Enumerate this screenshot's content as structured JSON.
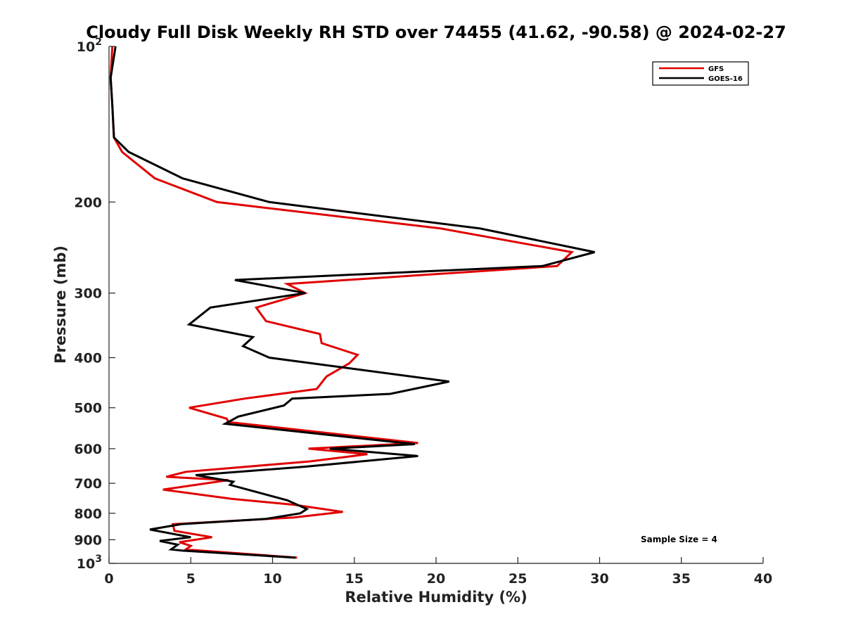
{
  "chart_data": {
    "type": "line",
    "title": "Cloudy Full Disk Weekly RH STD over 74455 (41.62, -90.58) @ 2024-02-27",
    "xlabel": "Relative Humidity (%)",
    "ylabel": "Pressure (mb)",
    "xlim": [
      0,
      40
    ],
    "ylim": [
      100,
      1000
    ],
    "y_scale": "log",
    "y_reversed": true,
    "grid": false,
    "legend_placement": "top-right",
    "x_ticks": [
      0,
      5,
      10,
      15,
      20,
      25,
      30,
      35,
      40
    ],
    "y_ticks": [
      {
        "value": 100,
        "base": "10",
        "exp": "2"
      },
      {
        "value": 200,
        "label": "200"
      },
      {
        "value": 300,
        "label": "300"
      },
      {
        "value": 400,
        "label": "400"
      },
      {
        "value": 500,
        "label": "500"
      },
      {
        "value": 600,
        "label": "600"
      },
      {
        "value": 700,
        "label": "700"
      },
      {
        "value": 800,
        "label": "800"
      },
      {
        "value": 900,
        "label": "900"
      },
      {
        "value": 1000,
        "base": "10",
        "exp": "3"
      }
    ],
    "annotation": "Sample Size = 4",
    "series": [
      {
        "name": "GFS",
        "color": "#e00000",
        "points": [
          [
            0.2,
            100
          ],
          [
            0.1,
            115
          ],
          [
            0.2,
            130
          ],
          [
            0.3,
            150
          ],
          [
            0.8,
            160
          ],
          [
            2.8,
            180
          ],
          [
            6.6,
            200
          ],
          [
            20.3,
            225
          ],
          [
            28.3,
            250
          ],
          [
            27.4,
            266
          ],
          [
            10.9,
            288
          ],
          [
            12.0,
            300
          ],
          [
            9.0,
            320
          ],
          [
            9.6,
            340
          ],
          [
            12.9,
            360
          ],
          [
            13.0,
            375
          ],
          [
            15.2,
            395
          ],
          [
            14.7,
            410
          ],
          [
            13.3,
            435
          ],
          [
            12.7,
            460
          ],
          [
            8.3,
            480
          ],
          [
            4.9,
            500
          ],
          [
            7.2,
            525
          ],
          [
            7.3,
            533
          ],
          [
            18.9,
            585
          ],
          [
            12.2,
            600
          ],
          [
            15.8,
            615
          ],
          [
            12.3,
            635
          ],
          [
            4.7,
            665
          ],
          [
            3.5,
            680
          ],
          [
            7.3,
            690
          ],
          [
            3.3,
            720
          ],
          [
            7.5,
            750
          ],
          [
            11.3,
            770
          ],
          [
            14.3,
            795
          ],
          [
            11.3,
            815
          ],
          [
            3.9,
            840
          ],
          [
            4.0,
            865
          ],
          [
            6.3,
            890
          ],
          [
            4.3,
            910
          ],
          [
            5.0,
            925
          ],
          [
            4.7,
            940
          ],
          [
            11.5,
            975
          ]
        ]
      },
      {
        "name": "GOES-16",
        "color": "#000000",
        "points": [
          [
            0.4,
            100
          ],
          [
            0.1,
            115
          ],
          [
            0.2,
            130
          ],
          [
            0.3,
            150
          ],
          [
            1.2,
            160
          ],
          [
            4.5,
            180
          ],
          [
            9.8,
            200
          ],
          [
            22.7,
            225
          ],
          [
            29.7,
            250
          ],
          [
            26.5,
            266
          ],
          [
            7.7,
            283
          ],
          [
            12.0,
            300
          ],
          [
            6.2,
            320
          ],
          [
            4.9,
            345
          ],
          [
            8.8,
            365
          ],
          [
            8.2,
            380
          ],
          [
            9.8,
            400
          ],
          [
            20.8,
            445
          ],
          [
            17.2,
            470
          ],
          [
            11.2,
            480
          ],
          [
            10.7,
            495
          ],
          [
            7.9,
            520
          ],
          [
            7.1,
            537
          ],
          [
            18.7,
            588
          ],
          [
            13.5,
            600
          ],
          [
            18.9,
            620
          ],
          [
            12.0,
            650
          ],
          [
            5.3,
            675
          ],
          [
            7.6,
            695
          ],
          [
            7.4,
            705
          ],
          [
            10.9,
            755
          ],
          [
            12.1,
            785
          ],
          [
            11.7,
            800
          ],
          [
            9.6,
            820
          ],
          [
            4.4,
            840
          ],
          [
            2.5,
            860
          ],
          [
            5.0,
            890
          ],
          [
            3.1,
            905
          ],
          [
            4.2,
            920
          ],
          [
            3.8,
            940
          ],
          [
            4.5,
            945
          ],
          [
            11.4,
            975
          ]
        ]
      }
    ]
  }
}
